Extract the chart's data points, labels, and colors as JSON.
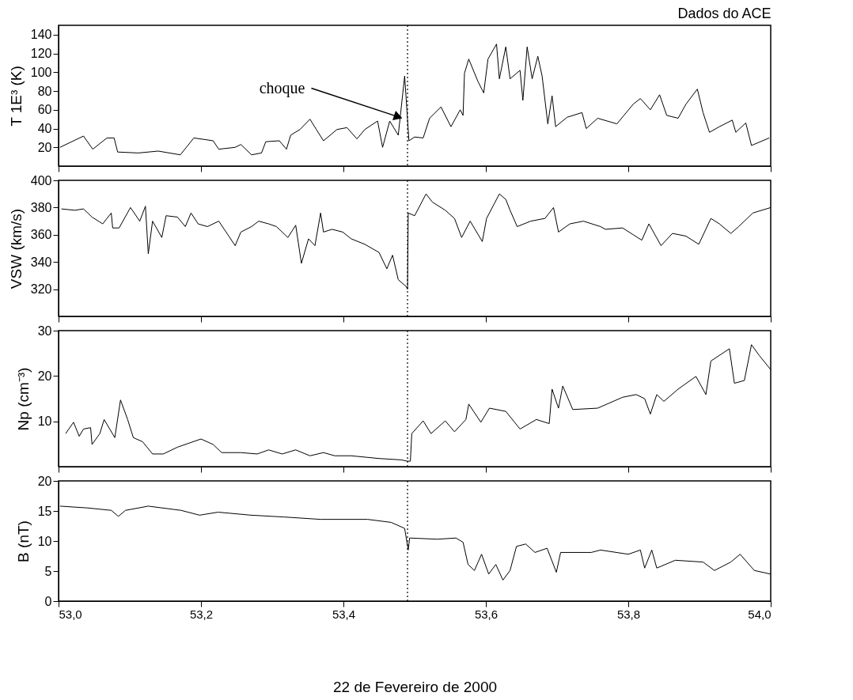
{
  "chart_data": [
    {
      "type": "line",
      "title": "Dados do ACE",
      "ylabel": "T 1E³ (K)",
      "color": "#000000",
      "line_style": "solid",
      "grid": false,
      "tick_labels": "y",
      "xlim": [
        53.0,
        54.0
      ],
      "xticks": [
        53.0,
        53.2,
        53.4,
        53.6,
        53.8,
        54.0
      ],
      "ylim": [
        0,
        150
      ],
      "yticks": [
        20,
        40,
        60,
        80,
        100,
        120,
        140
      ],
      "x": [
        53.002,
        53.035,
        53.048,
        53.068,
        53.078,
        53.083,
        53.112,
        53.14,
        53.171,
        53.19,
        53.217,
        53.225,
        53.248,
        53.256,
        53.271,
        53.285,
        53.291,
        53.31,
        53.32,
        53.326,
        53.339,
        53.353,
        53.362,
        53.372,
        53.391,
        53.405,
        53.419,
        53.43,
        53.448,
        53.455,
        53.465,
        53.477,
        53.486,
        53.492,
        53.5,
        53.512,
        53.521,
        53.537,
        53.551,
        53.564,
        53.568,
        53.57,
        53.576,
        53.589,
        53.597,
        53.603,
        53.615,
        53.619,
        53.628,
        53.634,
        53.648,
        53.652,
        53.658,
        53.665,
        53.673,
        53.679,
        53.687,
        53.693,
        53.698,
        53.714,
        53.735,
        53.741,
        53.757,
        53.784,
        53.807,
        53.817,
        53.831,
        53.844,
        53.854,
        53.87,
        53.881,
        53.897,
        53.905,
        53.914,
        53.928,
        53.946,
        53.951,
        53.965,
        53.973,
        53.998
      ],
      "values": [
        20,
        32,
        18,
        30,
        30,
        15,
        14,
        16,
        12,
        30,
        27,
        18,
        20,
        23,
        12,
        14,
        26,
        27,
        18,
        33,
        39,
        50,
        39,
        27,
        39,
        41,
        29,
        39,
        48,
        20,
        48,
        33,
        96,
        27,
        31,
        30,
        51,
        63,
        42,
        60,
        54,
        99,
        114,
        90,
        78,
        114,
        130,
        93,
        127,
        93,
        102,
        70,
        127,
        93,
        117,
        96,
        45,
        75,
        42,
        52,
        57,
        40,
        51,
        45,
        66,
        72,
        60,
        76,
        54,
        51,
        66,
        82,
        57,
        36,
        42,
        49,
        36,
        46,
        22,
        30
      ],
      "ref_lines": [
        {
          "axis": "x",
          "value": 53.49,
          "color": "#000000",
          "line_style": "dotted"
        }
      ],
      "annotations": [
        {
          "text": "choque",
          "x": 53.475,
          "y": 53
        }
      ]
    },
    {
      "type": "line",
      "ylabel": "VSW (km/s)",
      "color": "#000000",
      "line_style": "solid",
      "grid": false,
      "tick_labels": "y",
      "xlim": [
        53.0,
        54.0
      ],
      "xticks": [
        53.0,
        53.2,
        53.4,
        53.6,
        53.8,
        54.0
      ],
      "ylim": [
        300,
        400
      ],
      "yticks": [
        320,
        340,
        360,
        380,
        400
      ],
      "x": [
        53.004,
        53.023,
        53.035,
        53.047,
        53.062,
        53.074,
        53.076,
        53.085,
        53.101,
        53.114,
        53.122,
        53.126,
        53.132,
        53.145,
        53.151,
        53.167,
        53.178,
        53.186,
        53.196,
        53.209,
        53.225,
        53.248,
        53.256,
        53.271,
        53.281,
        53.295,
        53.306,
        53.322,
        53.333,
        53.341,
        53.351,
        53.36,
        53.368,
        53.372,
        53.384,
        53.399,
        53.411,
        53.43,
        53.45,
        53.461,
        53.469,
        53.477,
        53.488,
        53.49,
        53.491,
        53.5,
        53.516,
        53.525,
        53.543,
        53.556,
        53.566,
        53.578,
        53.595,
        53.601,
        53.619,
        53.628,
        53.634,
        53.644,
        53.663,
        53.683,
        53.695,
        53.702,
        53.718,
        53.737,
        53.761,
        53.768,
        53.792,
        53.807,
        53.819,
        53.829,
        53.846,
        53.862,
        53.881,
        53.899,
        53.916,
        53.928,
        53.944,
        53.955,
        53.975,
        54.0
      ],
      "values": [
        379,
        378,
        379,
        373,
        368,
        376,
        365,
        365,
        380,
        370,
        381,
        346,
        370,
        358,
        374,
        373,
        366,
        376,
        368,
        366,
        370,
        352,
        362,
        366,
        370,
        368,
        366,
        358,
        367,
        339,
        357,
        352,
        376,
        362,
        364,
        362,
        357,
        353,
        347,
        335,
        345,
        327,
        322,
        320,
        376,
        374,
        390,
        384,
        378,
        372,
        358,
        370,
        355,
        372,
        390,
        386,
        378,
        366,
        370,
        372,
        380,
        362,
        368,
        370,
        366,
        364,
        365,
        360,
        356,
        368,
        352,
        361,
        359,
        353,
        372,
        368,
        361,
        366,
        376,
        380
      ],
      "ref_lines": [
        {
          "axis": "x",
          "value": 53.49,
          "color": "#000000",
          "line_style": "dotted"
        }
      ]
    },
    {
      "type": "line",
      "ylabel": "Np (cm⁻³)",
      "color": "#000000",
      "line_style": "solid",
      "grid": false,
      "tick_labels": "y",
      "xlim": [
        53.0,
        54.0
      ],
      "xticks": [
        53.0,
        53.2,
        53.4,
        53.6,
        53.8,
        54.0
      ],
      "ylim": [
        0,
        30
      ],
      "yticks": [
        10,
        20,
        30
      ],
      "x": [
        53.01,
        53.021,
        53.029,
        53.035,
        53.045,
        53.047,
        53.058,
        53.064,
        53.079,
        53.087,
        53.097,
        53.105,
        53.118,
        53.132,
        53.147,
        53.167,
        53.2,
        53.217,
        53.229,
        53.256,
        53.279,
        53.295,
        53.314,
        53.333,
        53.353,
        53.372,
        53.388,
        53.411,
        53.45,
        53.481,
        53.49,
        53.494,
        53.496,
        53.512,
        53.523,
        53.543,
        53.556,
        53.572,
        53.576,
        53.593,
        53.605,
        53.628,
        53.648,
        53.671,
        53.689,
        53.693,
        53.702,
        53.708,
        53.722,
        53.757,
        53.792,
        53.811,
        53.823,
        53.831,
        53.84,
        53.85,
        53.87,
        53.895,
        53.909,
        53.916,
        53.942,
        53.949,
        53.963,
        53.973,
        53.984,
        54.0
      ],
      "values": [
        7.3,
        9.8,
        6.7,
        8.3,
        8.6,
        4.9,
        7.3,
        10.4,
        6.4,
        14.7,
        10.4,
        6.4,
        5.5,
        2.8,
        2.8,
        4.3,
        6.1,
        4.9,
        3.1,
        3.1,
        2.8,
        3.7,
        2.8,
        3.7,
        2.4,
        3.1,
        2.4,
        2.4,
        1.8,
        1.5,
        1.2,
        1.2,
        7.3,
        10.1,
        7.3,
        10.1,
        7.7,
        10.4,
        13.8,
        9.8,
        12.9,
        12.2,
        8.3,
        10.4,
        9.5,
        17.1,
        12.9,
        17.8,
        12.6,
        12.9,
        15.3,
        15.9,
        15.0,
        11.6,
        15.9,
        14.4,
        17.1,
        19.9,
        15.9,
        23.3,
        26.0,
        18.4,
        19.0,
        26.9,
        24.5,
        21.4
      ],
      "ref_lines": [
        {
          "axis": "x",
          "value": 53.49,
          "color": "#000000",
          "line_style": "dotted"
        }
      ]
    },
    {
      "type": "line",
      "ylabel": "B (nT)",
      "xlabel": "22 de Fevereiro de 2000",
      "color": "#000000",
      "line_style": "solid",
      "grid": false,
      "xlim": [
        53.0,
        54.0
      ],
      "xticks": [
        {
          "value": 53.0,
          "label": "53,0"
        },
        {
          "value": 53.2,
          "label": "53,2"
        },
        {
          "value": 53.4,
          "label": "53,4"
        },
        {
          "value": 53.6,
          "label": "53,6"
        },
        {
          "value": 53.8,
          "label": "53,8"
        },
        {
          "value": 54.0,
          "label": "54,0"
        }
      ],
      "ylim": [
        0,
        20
      ],
      "yticks": [
        0,
        5,
        10,
        15,
        20
      ],
      "x": [
        53.002,
        53.041,
        53.074,
        53.084,
        53.094,
        53.126,
        53.172,
        53.198,
        53.224,
        53.27,
        53.316,
        53.368,
        53.434,
        53.467,
        53.486,
        53.491,
        53.493,
        53.532,
        53.558,
        53.568,
        53.575,
        53.584,
        53.594,
        53.604,
        53.614,
        53.624,
        53.634,
        53.643,
        53.656,
        53.669,
        53.686,
        53.699,
        53.705,
        53.748,
        53.761,
        53.8,
        53.817,
        53.823,
        53.833,
        53.84,
        53.866,
        53.905,
        53.921,
        53.944,
        53.957,
        53.977,
        54.0
      ],
      "values": [
        15.8,
        15.5,
        15.1,
        14.1,
        15.1,
        15.8,
        15.1,
        14.3,
        14.8,
        14.3,
        14.0,
        13.6,
        13.6,
        13.1,
        12.1,
        8.5,
        10.5,
        10.3,
        10.5,
        9.8,
        6.1,
        5.1,
        7.8,
        4.5,
        6.1,
        3.5,
        5.1,
        9.1,
        9.5,
        8.1,
        8.8,
        4.8,
        8.1,
        8.1,
        8.5,
        7.8,
        8.5,
        5.5,
        8.5,
        5.5,
        6.8,
        6.5,
        5.1,
        6.5,
        7.8,
        5.1,
        4.5
      ],
      "ref_lines": [
        {
          "axis": "x",
          "value": 53.49,
          "color": "#000000",
          "line_style": "dotted"
        }
      ]
    }
  ]
}
